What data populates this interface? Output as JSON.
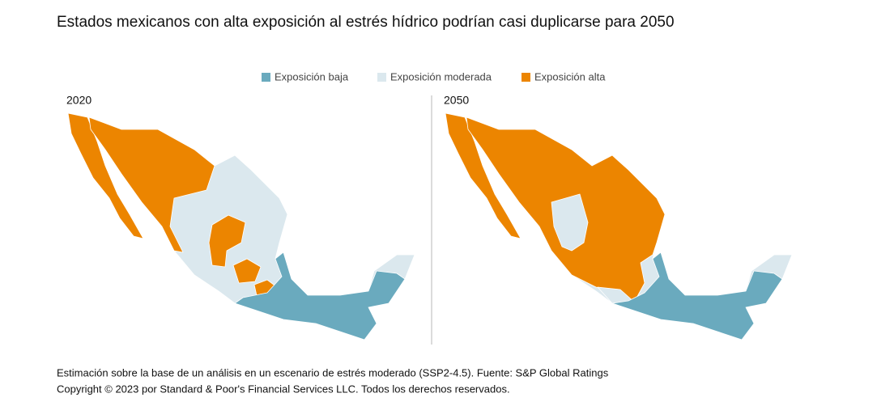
{
  "title": "Estados mexicanos con alta exposición al estrés hídrico podrían casi duplicarse para 2050",
  "legend": [
    {
      "name": "Exposición baja",
      "color": "#6aaabe"
    },
    {
      "name": "Exposición moderada",
      "color": "#dbe8ee"
    },
    {
      "name": "Exposición alta",
      "color": "#ec8500"
    }
  ],
  "panels": [
    {
      "label": "2020"
    },
    {
      "label": "2050"
    }
  ],
  "notes": [
    "Estimación sobre la base de un análisis en un escenario de estrés moderado (SSP2-4.5). Fuente: S&P Global Ratings",
    "Copyright © 2023 por Standard & Poor's Financial Services LLC. Todos los derechos reservados."
  ]
}
